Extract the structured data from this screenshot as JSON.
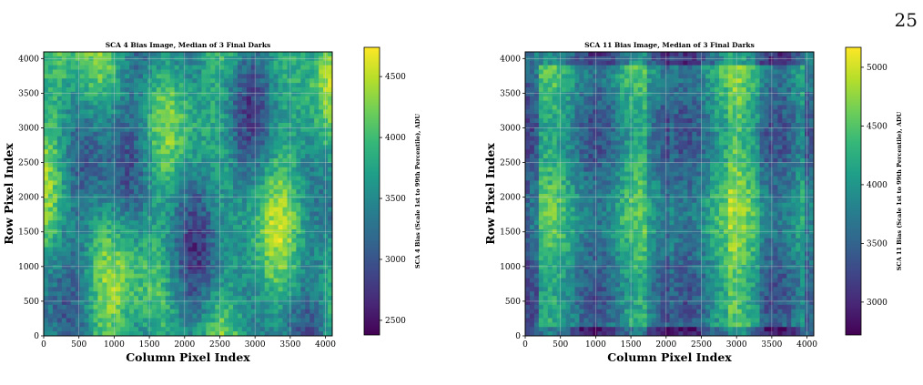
{
  "page_number": "25",
  "colors": {
    "viridis": [
      "#440154",
      "#482878",
      "#3e4989",
      "#31688e",
      "#26828e",
      "#1f9e89",
      "#35b779",
      "#6ece58",
      "#b5de2b",
      "#fde725"
    ],
    "frame": "#000000",
    "grid": "#d0d0d0"
  },
  "chart_data": [
    {
      "type": "heatmap",
      "title": "SCA 4 Bias Image, Median of 3 Final Darks",
      "xlabel": "Column Pixel Index",
      "ylabel": "Row Pixel Index",
      "colorbar_label": "SCA 4 Bias (Scale 1st to 99th Percentile), ADU",
      "xlim": [
        0,
        4096
      ],
      "ylim": [
        0,
        4096
      ],
      "x_ticks": [
        0,
        500,
        1000,
        1500,
        2000,
        2500,
        3000,
        3500,
        4000
      ],
      "y_ticks": [
        0,
        500,
        1000,
        1500,
        2000,
        2500,
        3000,
        3500,
        4000
      ],
      "colorbar_range": [
        2380,
        4740
      ],
      "colorbar_ticks": [
        2500,
        3000,
        3500,
        4000,
        4500
      ],
      "colormap": "viridis",
      "grid": true
    },
    {
      "type": "heatmap",
      "title": "SCA 11 Bias Image, Median of 3 Final Darks",
      "xlabel": "Column Pixel Index",
      "ylabel": "Row Pixel Index",
      "colorbar_label": "SCA 11 Bias (Scale 1st to 99th Percentile), ADU",
      "xlim": [
        0,
        4096
      ],
      "ylim": [
        0,
        4096
      ],
      "x_ticks": [
        0,
        500,
        1000,
        1500,
        2000,
        2500,
        3000,
        3500,
        4000
      ],
      "y_ticks": [
        0,
        500,
        1000,
        1500,
        2000,
        2500,
        3000,
        3500,
        4000
      ],
      "colorbar_range": [
        2720,
        5170
      ],
      "colorbar_ticks": [
        3000,
        3500,
        4000,
        4500,
        5000
      ],
      "colormap": "viridis",
      "grid": true
    }
  ]
}
